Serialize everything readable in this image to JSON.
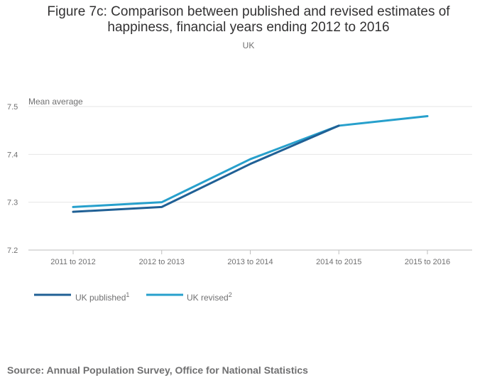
{
  "chart_data": {
    "type": "line",
    "title_line1": "Figure 7c: Comparison between published and revised estimates of",
    "title_line2": "happiness, financial years ending 2012 to 2016",
    "subtitle": "UK",
    "ylabel": "Mean average",
    "xlabel": "",
    "categories": [
      "2011 to 2012",
      "2012 to 2013",
      "2013 to 2014",
      "2014 to 2015",
      "2015 to 2016"
    ],
    "ylim": [
      7.2,
      7.5
    ],
    "yticks": [
      "7.2",
      "7.3",
      "7.4",
      "7.5"
    ],
    "grid": true,
    "legend_position": "bottom-left",
    "series": [
      {
        "name": "UK published",
        "superscript": "1",
        "color": "#206095",
        "values": [
          7.28,
          7.29,
          7.38,
          7.46,
          null
        ]
      },
      {
        "name": "UK revised",
        "superscript": "2",
        "color": "#27a0cc",
        "values": [
          7.29,
          7.3,
          7.39,
          7.46,
          7.48
        ]
      }
    ],
    "source": "Source: Annual Population Survey, Office for National Statistics"
  }
}
